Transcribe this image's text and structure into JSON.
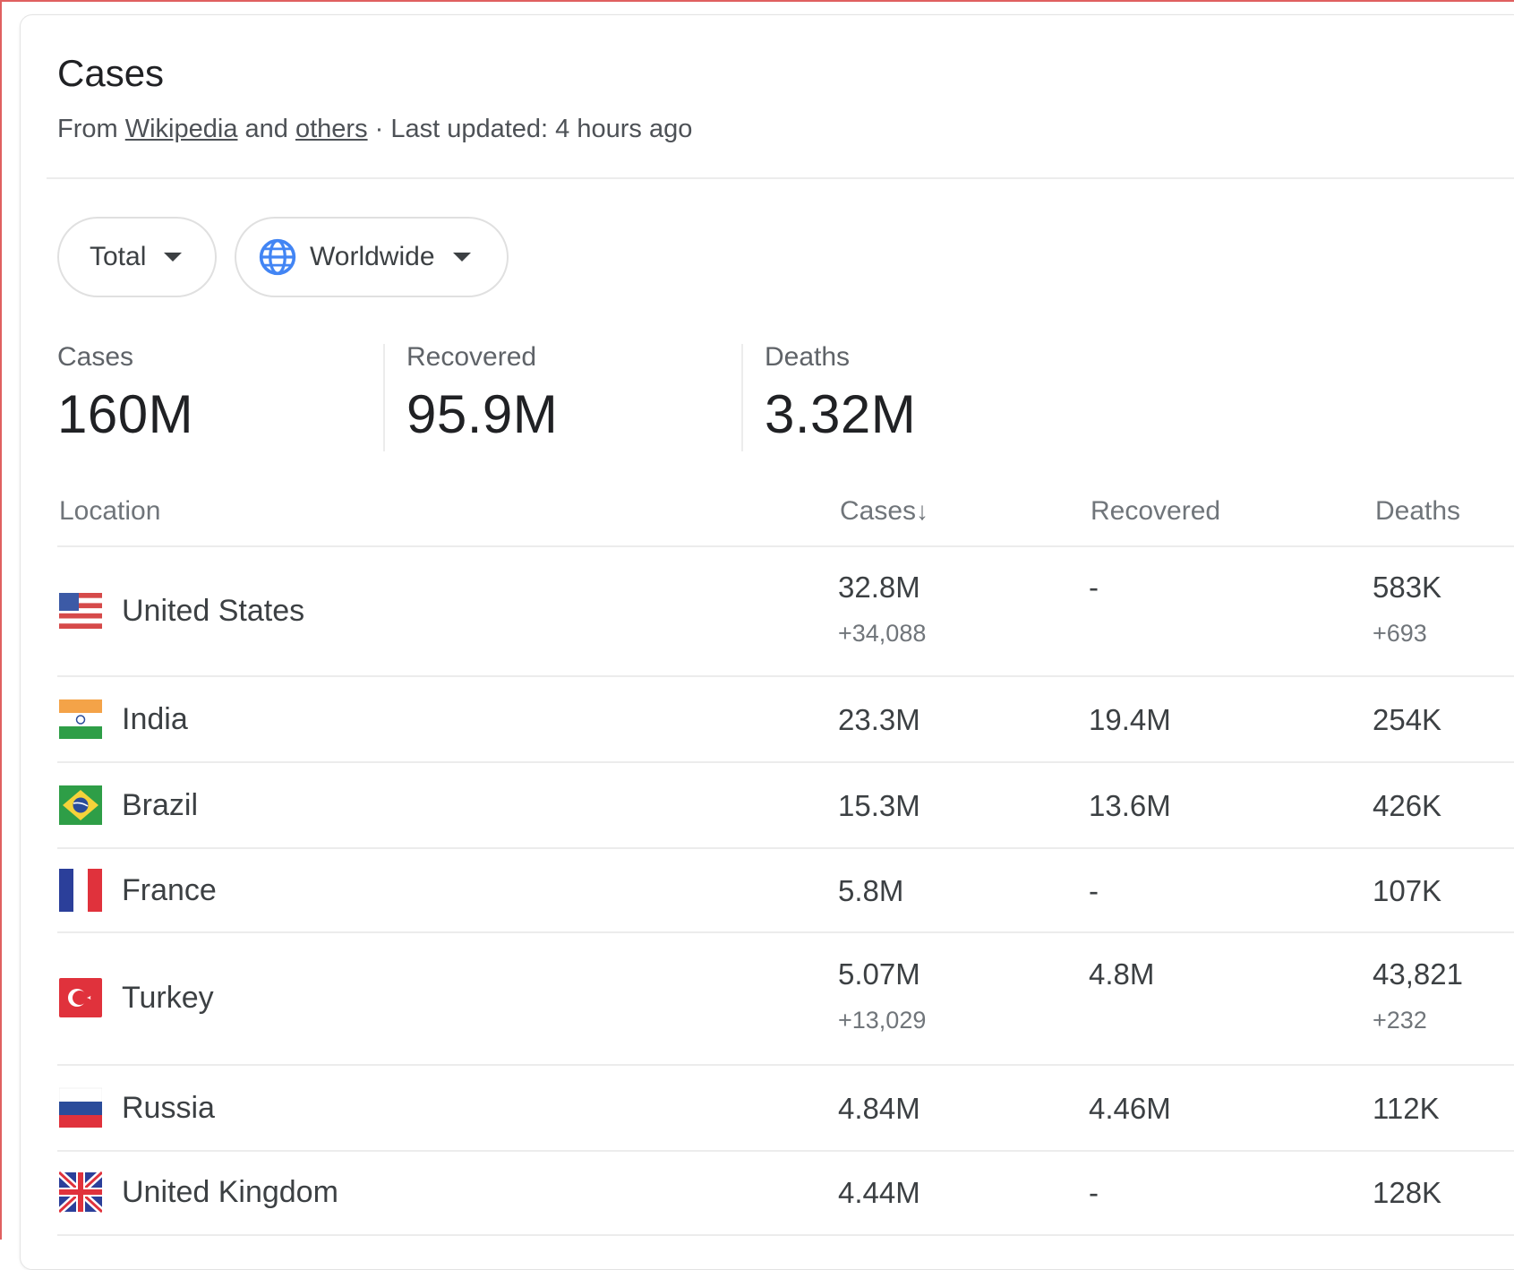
{
  "header": {
    "title": "Cases",
    "source_prefix": "From",
    "source_link_1": "Wikipedia",
    "source_and": "and",
    "source_link_2": "others",
    "updated": "· Last updated: 4 hours ago"
  },
  "filters": {
    "type_label": "Total",
    "region_label": "Worldwide"
  },
  "totals": {
    "cases_label": "Cases",
    "cases_value": "160M",
    "recovered_label": "Recovered",
    "recovered_value": "95.9M",
    "deaths_label": "Deaths",
    "deaths_value": "3.32M"
  },
  "table": {
    "headers": {
      "location": "Location",
      "cases": "Cases",
      "cases_sort_icon": "arrow-down-icon",
      "recovered": "Recovered",
      "deaths": "Deaths"
    },
    "rows": [
      {
        "location": "United States",
        "flag": "us-flag-icon",
        "cases": "32.8M",
        "cases_delta": "+34,088",
        "recovered": "-",
        "deaths": "583K",
        "deaths_delta": "+693"
      },
      {
        "location": "India",
        "flag": "india-flag-icon",
        "cases": "23.3M",
        "recovered": "19.4M",
        "deaths": "254K"
      },
      {
        "location": "Brazil",
        "flag": "brazil-flag-icon",
        "cases": "15.3M",
        "recovered": "13.6M",
        "deaths": "426K"
      },
      {
        "location": "France",
        "flag": "france-flag-icon",
        "cases": "5.8M",
        "recovered": "-",
        "deaths": "107K"
      },
      {
        "location": "Turkey",
        "flag": "turkey-flag-icon",
        "cases": "5.07M",
        "cases_delta": "+13,029",
        "recovered": "4.8M",
        "deaths": "43,821",
        "deaths_delta": "+232"
      },
      {
        "location": "Russia",
        "flag": "russia-flag-icon",
        "cases": "4.84M",
        "recovered": "4.46M",
        "deaths": "112K"
      },
      {
        "location": "United Kingdom",
        "flag": "uk-flag-icon",
        "cases": "4.44M",
        "recovered": "-",
        "deaths": "128K"
      }
    ]
  },
  "colors": {
    "accent_blue": "#4285f4",
    "text_primary": "#202124",
    "text_secondary": "#70757a"
  }
}
